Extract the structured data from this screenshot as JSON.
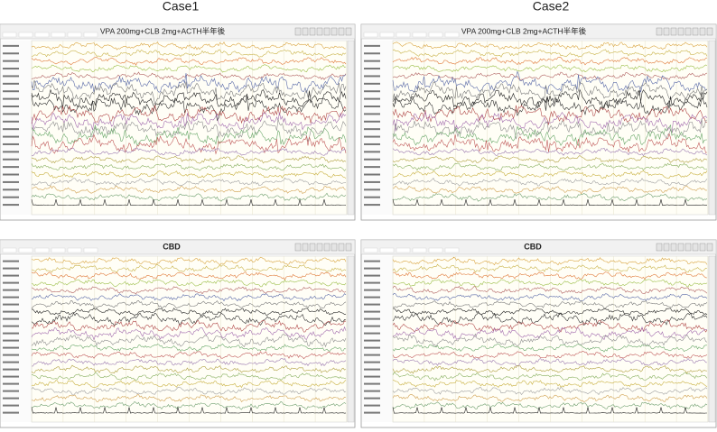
{
  "columns": [
    {
      "title": "Case1",
      "panels": [
        {
          "label": "VPA 200mg+CLB 2mg+ACTH半年後"
        },
        {
          "label": "CBD"
        }
      ]
    },
    {
      "title": "Case2",
      "panels": [
        {
          "label": "VPA 200mg+CLB 2mg+ACTH半年後"
        },
        {
          "label": "CBD"
        }
      ]
    }
  ]
}
